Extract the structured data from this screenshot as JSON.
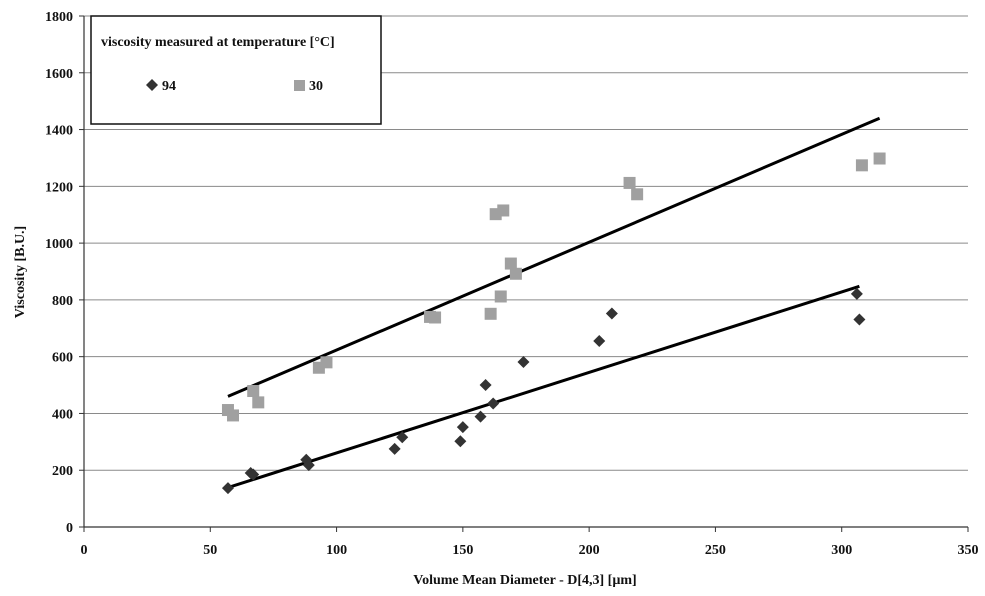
{
  "chart_data": {
    "type": "scatter",
    "title": "",
    "xlabel": "Volume Mean Diameter - D[4,3] [µm]",
    "ylabel": "Viscosity [B.U.]",
    "xlim": [
      0,
      350
    ],
    "ylim": [
      0,
      1800
    ],
    "x_ticks": [
      "0",
      "50",
      "100",
      "150",
      "200",
      "250",
      "300",
      "350"
    ],
    "y_ticks": [
      "0",
      "200",
      "400",
      "600",
      "800",
      "1000",
      "1200",
      "1400",
      "1600",
      "1800"
    ],
    "grid": "horizontal",
    "legend": {
      "title": "viscosity measured at temperature [°C]",
      "placement": "top-left"
    },
    "series": [
      {
        "name": "94",
        "marker": "diamond",
        "color": "#333333",
        "points": [
          [
            57,
            137
          ],
          [
            66,
            190
          ],
          [
            67,
            185
          ],
          [
            88,
            237
          ],
          [
            89,
            218
          ],
          [
            123,
            275
          ],
          [
            126,
            316
          ],
          [
            149,
            302
          ],
          [
            150,
            352
          ],
          [
            157,
            389
          ],
          [
            159,
            500
          ],
          [
            162,
            435
          ],
          [
            174,
            581
          ],
          [
            204,
            655
          ],
          [
            209,
            752
          ],
          [
            306,
            821
          ],
          [
            307,
            731
          ]
        ],
        "trendline": {
          "x": [
            57,
            307
          ],
          "y": [
            139,
            848
          ]
        }
      },
      {
        "name": "30",
        "marker": "square",
        "color": "#a0a0a0",
        "points": [
          [
            57,
            412
          ],
          [
            59,
            393
          ],
          [
            67,
            479
          ],
          [
            69,
            439
          ],
          [
            93,
            561
          ],
          [
            96,
            580
          ],
          [
            137,
            740
          ],
          [
            139,
            738
          ],
          [
            161,
            751
          ],
          [
            163,
            1102
          ],
          [
            165,
            812
          ],
          [
            166,
            1115
          ],
          [
            169,
            928
          ],
          [
            171,
            892
          ],
          [
            216,
            1212
          ],
          [
            219,
            1172
          ],
          [
            308,
            1274
          ],
          [
            315,
            1298
          ]
        ],
        "trendline": {
          "x": [
            57,
            315
          ],
          "y": [
            460,
            1440
          ]
        }
      }
    ]
  }
}
